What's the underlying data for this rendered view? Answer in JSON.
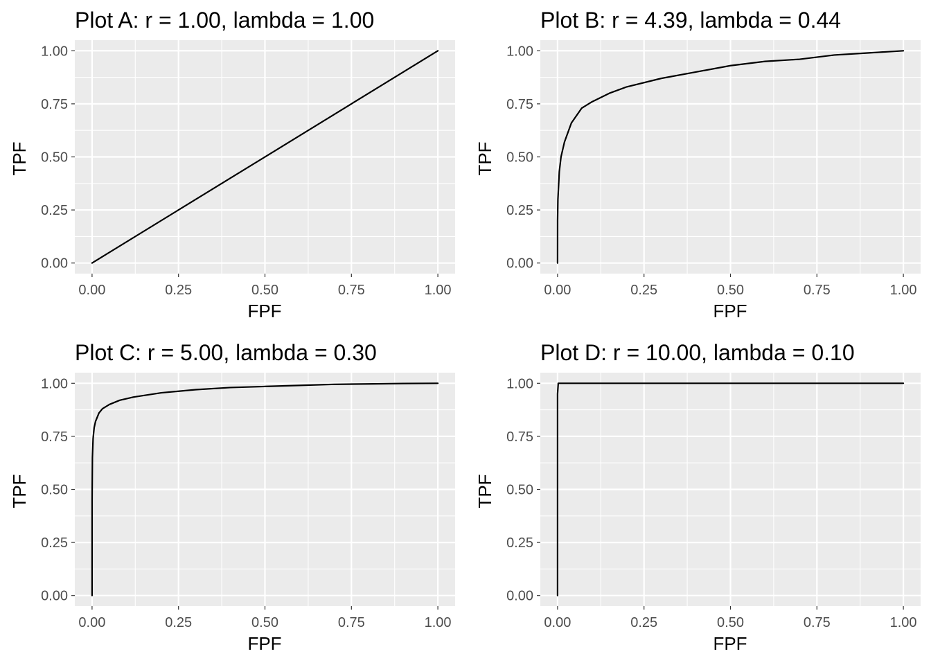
{
  "chart_data": [
    {
      "type": "line",
      "title": "Plot A: r = 1.00, lambda = 1.00",
      "xlabel": "FPF",
      "ylabel": "TPF",
      "xlim": [
        0,
        1
      ],
      "ylim": [
        0,
        1
      ],
      "xticks": [
        "0.00",
        "0.25",
        "0.50",
        "0.75",
        "1.00"
      ],
      "yticks": [
        "0.00",
        "0.25",
        "0.50",
        "0.75",
        "1.00"
      ],
      "grid": true,
      "series": [
        {
          "x": [
            0,
            0.25,
            0.5,
            0.75,
            1.0
          ],
          "y": [
            0,
            0.25,
            0.5,
            0.75,
            1.0
          ]
        }
      ]
    },
    {
      "type": "line",
      "title": "Plot B: r = 4.39, lambda = 0.44",
      "xlabel": "FPF",
      "ylabel": "TPF",
      "xlim": [
        0,
        1
      ],
      "ylim": [
        0,
        1
      ],
      "xticks": [
        "0.00",
        "0.25",
        "0.50",
        "0.75",
        "1.00"
      ],
      "yticks": [
        "0.00",
        "0.25",
        "0.50",
        "0.75",
        "1.00"
      ],
      "grid": true,
      "series": [
        {
          "x": [
            0,
            0.0001,
            0.001,
            0.005,
            0.01,
            0.02,
            0.04,
            0.07,
            0.1,
            0.15,
            0.2,
            0.3,
            0.4,
            0.5,
            0.6,
            0.7,
            0.8,
            0.9,
            1.0
          ],
          "y": [
            0,
            0.2,
            0.3,
            0.43,
            0.5,
            0.57,
            0.66,
            0.73,
            0.76,
            0.8,
            0.83,
            0.87,
            0.9,
            0.93,
            0.95,
            0.96,
            0.98,
            0.99,
            1.0
          ]
        }
      ]
    },
    {
      "type": "line",
      "title": "Plot C: r = 5.00, lambda = 0.30",
      "xlabel": "FPF",
      "ylabel": "TPF",
      "xlim": [
        0,
        1
      ],
      "ylim": [
        0,
        1
      ],
      "xticks": [
        "0.00",
        "0.25",
        "0.50",
        "0.75",
        "1.00"
      ],
      "yticks": [
        "0.00",
        "0.25",
        "0.50",
        "0.75",
        "1.00"
      ],
      "grid": true,
      "series": [
        {
          "x": [
            0,
            0.0001,
            0.001,
            0.003,
            0.006,
            0.01,
            0.02,
            0.03,
            0.05,
            0.08,
            0.12,
            0.2,
            0.3,
            0.4,
            0.5,
            0.6,
            0.7,
            0.8,
            0.9,
            1.0
          ],
          "y": [
            0,
            0.45,
            0.65,
            0.74,
            0.79,
            0.82,
            0.86,
            0.88,
            0.9,
            0.92,
            0.935,
            0.955,
            0.97,
            0.98,
            0.985,
            0.99,
            0.995,
            0.997,
            0.999,
            1.0
          ]
        }
      ]
    },
    {
      "type": "line",
      "title": "Plot D: r = 10.00, lambda = 0.10",
      "xlabel": "FPF",
      "ylabel": "TPF",
      "xlim": [
        0,
        1
      ],
      "ylim": [
        0,
        1
      ],
      "xticks": [
        "0.00",
        "0.25",
        "0.50",
        "0.75",
        "1.00"
      ],
      "yticks": [
        "0.00",
        "0.25",
        "0.50",
        "0.75",
        "1.00"
      ],
      "grid": true,
      "series": [
        {
          "x": [
            0,
            0,
            0.002,
            0.01,
            0.05,
            0.25,
            0.5,
            0.75,
            1.0
          ],
          "y": [
            0,
            0.95,
            1.0,
            1.0,
            1.0,
            1.0,
            1.0,
            1.0,
            1.0
          ]
        }
      ]
    }
  ]
}
